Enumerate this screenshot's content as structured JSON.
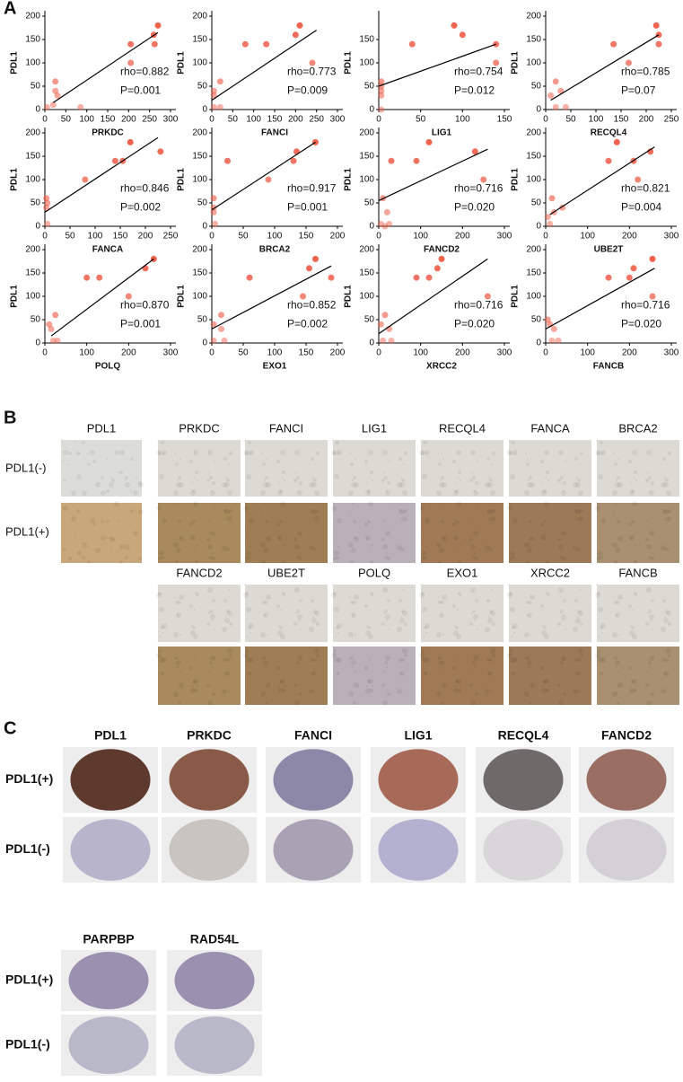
{
  "panel_a": {
    "label": "A"
  },
  "chart_data": [
    {
      "type": "scatter",
      "xlabel": "PRKDC",
      "ylabel": "PDL1",
      "annotations": [
        "rho=0.882",
        "P=0.001"
      ],
      "color": "#ee5a45",
      "x": [
        5,
        25,
        25,
        30,
        20,
        85,
        205,
        205,
        260,
        270,
        262
      ],
      "values": [
        5,
        60,
        40,
        30,
        10,
        5,
        100,
        140,
        160,
        180,
        140
      ],
      "trendline": {
        "x": [
          20,
          270
        ],
        "y": [
          15,
          165
        ]
      },
      "xlim": [
        0,
        300
      ],
      "ylim": [
        0,
        200
      ],
      "xticks": [
        0,
        50,
        100,
        150,
        200,
        250,
        300
      ],
      "yticks": [
        0,
        50,
        100,
        150,
        200
      ]
    },
    {
      "type": "scatter",
      "xlabel": "FANCI",
      "ylabel": "PDL1",
      "annotations": [
        "rho=0.773",
        "P=0.009"
      ],
      "color": "#ee5a45",
      "x": [
        5,
        5,
        20,
        20,
        80,
        130,
        200,
        210,
        240,
        5
      ],
      "values": [
        5,
        40,
        5,
        60,
        140,
        140,
        160,
        180,
        100,
        30
      ],
      "trendline": {
        "x": [
          0,
          250
        ],
        "y": [
          20,
          170
        ]
      },
      "xlim": [
        0,
        300
      ],
      "ylim": [
        0,
        200
      ],
      "xticks": [
        0,
        50,
        100,
        150,
        200,
        250,
        300
      ],
      "yticks": [
        0,
        50,
        100,
        150,
        200
      ]
    },
    {
      "type": "scatter",
      "xlabel": "LIG1",
      "ylabel": "PDL1",
      "annotations": [
        "rho=0.754",
        "P=0.012"
      ],
      "color": "#ee5a45",
      "x": [
        3,
        3,
        3,
        3,
        40,
        90,
        100,
        140,
        140,
        3
      ],
      "values": [
        0,
        30,
        50,
        60,
        140,
        180,
        160,
        140,
        100,
        40
      ],
      "trendline": {
        "x": [
          0,
          140
        ],
        "y": [
          50,
          140
        ]
      },
      "xlim": [
        0,
        150
      ],
      "ylim": [
        0,
        200
      ],
      "xticks": [
        0,
        50,
        100,
        150
      ],
      "yticks": [
        0,
        50,
        100,
        150
      ]
    },
    {
      "type": "scatter",
      "xlabel": "RECQL4",
      "ylabel": "PDL1",
      "annotations": [
        "rho=0.785",
        "P=0.07"
      ],
      "color": "#ee5a45",
      "x": [
        10,
        20,
        30,
        40,
        20,
        135,
        165,
        220,
        225,
        225
      ],
      "values": [
        30,
        60,
        40,
        5,
        5,
        140,
        100,
        180,
        160,
        140
      ],
      "trendline": {
        "x": [
          10,
          225
        ],
        "y": [
          20,
          160
        ]
      },
      "xlim": [
        0,
        250
      ],
      "ylim": [
        0,
        200
      ],
      "xticks": [
        0,
        50,
        100,
        150,
        200,
        250
      ],
      "yticks": [
        0,
        50,
        100,
        150,
        200
      ]
    },
    {
      "type": "scatter",
      "xlabel": "FANCA",
      "ylabel": "PDL1",
      "annotations": [
        "rho=0.846",
        "P=0.002"
      ],
      "color": "#ee5a45",
      "x": [
        3,
        3,
        5,
        80,
        140,
        155,
        170,
        230,
        5
      ],
      "values": [
        60,
        40,
        5,
        100,
        140,
        140,
        180,
        160,
        50
      ],
      "trendline": {
        "x": [
          0,
          225
        ],
        "y": [
          30,
          190
        ]
      },
      "xlim": [
        0,
        250
      ],
      "ylim": [
        0,
        200
      ],
      "xticks": [
        0,
        50,
        100,
        150,
        200,
        250
      ],
      "yticks": [
        0,
        50,
        100,
        150,
        200
      ]
    },
    {
      "type": "scatter",
      "xlabel": "BRCA2",
      "ylabel": "PDL1",
      "annotations": [
        "rho=0.917",
        "P=0.001"
      ],
      "color": "#ee5a45",
      "x": [
        3,
        3,
        5,
        25,
        90,
        130,
        135,
        165,
        3
      ],
      "values": [
        60,
        40,
        5,
        140,
        100,
        140,
        160,
        180,
        30
      ],
      "trendline": {
        "x": [
          0,
          165
        ],
        "y": [
          35,
          180
        ]
      },
      "xlim": [
        0,
        200
      ],
      "ylim": [
        0,
        200
      ],
      "xticks": [
        0,
        50,
        100,
        150,
        200
      ],
      "yticks": [
        0,
        50,
        100,
        150,
        200
      ]
    },
    {
      "type": "scatter",
      "xlabel": "FANCD2",
      "ylabel": "PDL1",
      "annotations": [
        "rho=0.716",
        "P=0.020"
      ],
      "color": "#ee5a45",
      "x": [
        10,
        15,
        20,
        30,
        90,
        120,
        230,
        250,
        5,
        25
      ],
      "values": [
        60,
        0,
        30,
        140,
        140,
        180,
        160,
        100,
        5,
        5
      ],
      "trendline": {
        "x": [
          0,
          260
        ],
        "y": [
          55,
          165
        ]
      },
      "xlim": [
        0,
        300
      ],
      "ylim": [
        0,
        200
      ],
      "xticks": [
        0,
        100,
        200,
        300
      ],
      "yticks": [
        0,
        50,
        100,
        150,
        200
      ]
    },
    {
      "type": "scatter",
      "xlabel": "UBE2T",
      "ylabel": "PDL1",
      "annotations": [
        "rho=0.821",
        "P=0.004"
      ],
      "color": "#ee5a45",
      "x": [
        10,
        15,
        20,
        40,
        150,
        170,
        210,
        220,
        250,
        5
      ],
      "values": [
        5,
        60,
        30,
        40,
        140,
        180,
        140,
        100,
        160,
        20
      ],
      "trendline": {
        "x": [
          10,
          260
        ],
        "y": [
          25,
          170
        ]
      },
      "xlim": [
        0,
        300
      ],
      "ylim": [
        0,
        200
      ],
      "xticks": [
        0,
        100,
        200,
        300
      ],
      "yticks": [
        0,
        50,
        100,
        150,
        200
      ]
    },
    {
      "type": "scatter",
      "xlabel": "POLQ",
      "ylabel": "PDL1",
      "annotations": [
        "rho=0.870",
        "P=0.001"
      ],
      "color": "#ee5a45",
      "x": [
        10,
        15,
        20,
        25,
        30,
        100,
        130,
        200,
        240,
        260
      ],
      "values": [
        40,
        30,
        5,
        60,
        5,
        140,
        140,
        100,
        160,
        180
      ],
      "trendline": {
        "x": [
          15,
          260
        ],
        "y": [
          15,
          180
        ]
      },
      "xlim": [
        0,
        300
      ],
      "ylim": [
        0,
        200
      ],
      "xticks": [
        0,
        100,
        200,
        300
      ],
      "yticks": [
        0,
        50,
        100,
        150,
        200
      ]
    },
    {
      "type": "scatter",
      "xlabel": "EXO1",
      "ylabel": "PDL1",
      "annotations": [
        "rho=0.852",
        "P=0.002"
      ],
      "color": "#ee5a45",
      "x": [
        3,
        15,
        15,
        20,
        60,
        145,
        155,
        165,
        190,
        3
      ],
      "values": [
        5,
        60,
        30,
        5,
        140,
        100,
        160,
        180,
        140,
        40
      ],
      "trendline": {
        "x": [
          0,
          190
        ],
        "y": [
          30,
          165
        ]
      },
      "xlim": [
        0,
        200
      ],
      "ylim": [
        0,
        200
      ],
      "xticks": [
        0,
        50,
        100,
        150,
        200
      ],
      "yticks": [
        0,
        50,
        100,
        150,
        200
      ]
    },
    {
      "type": "scatter",
      "xlabel": "XRCC2",
      "ylabel": "PDL1",
      "annotations": [
        "rho=0.716",
        "P=0.020"
      ],
      "color": "#ee5a45",
      "x": [
        5,
        10,
        15,
        25,
        30,
        90,
        120,
        140,
        150,
        260
      ],
      "values": [
        40,
        5,
        60,
        30,
        5,
        140,
        140,
        160,
        180,
        100
      ],
      "trendline": {
        "x": [
          0,
          260
        ],
        "y": [
          20,
          180
        ]
      },
      "xlim": [
        0,
        300
      ],
      "ylim": [
        0,
        200
      ],
      "xticks": [
        0,
        100,
        200,
        300
      ],
      "yticks": [
        0,
        50,
        100,
        150,
        200
      ]
    },
    {
      "type": "scatter",
      "xlabel": "FANCB",
      "ylabel": "PDL1",
      "annotations": [
        "rho=0.716",
        "P=0.020"
      ],
      "color": "#ee5a45",
      "x": [
        5,
        10,
        15,
        20,
        30,
        150,
        200,
        210,
        255,
        255
      ],
      "values": [
        50,
        40,
        5,
        30,
        5,
        140,
        140,
        160,
        180,
        100
      ],
      "trendline": {
        "x": [
          0,
          260
        ],
        "y": [
          30,
          160
        ]
      },
      "xlim": [
        0,
        300
      ],
      "ylim": [
        0,
        200
      ],
      "xticks": [
        0,
        100,
        200,
        300
      ],
      "yticks": [
        0,
        50,
        100,
        150,
        200
      ]
    }
  ],
  "panel_b": {
    "label": "B",
    "reference": "PDL1",
    "rows": [
      "PDL1(-)",
      "PDL1(+)"
    ],
    "genes": [
      "PRKDC",
      "FANCI",
      "LIG1",
      "RECQL4",
      "FANCA",
      "BRCA2",
      "FANCD2",
      "UBE2T",
      "POLQ",
      "EXO1",
      "XRCC2",
      "FANCB"
    ]
  },
  "panel_c": {
    "label": "C",
    "rows": [
      "PDL1(+)",
      "PDL1(-)"
    ],
    "groups": [
      [
        "PDL1",
        "PRKDC",
        "FANCI",
        "LIG1",
        "RECQL4",
        "FANCD2"
      ],
      [
        "PARPBP",
        "RAD54L"
      ]
    ]
  }
}
